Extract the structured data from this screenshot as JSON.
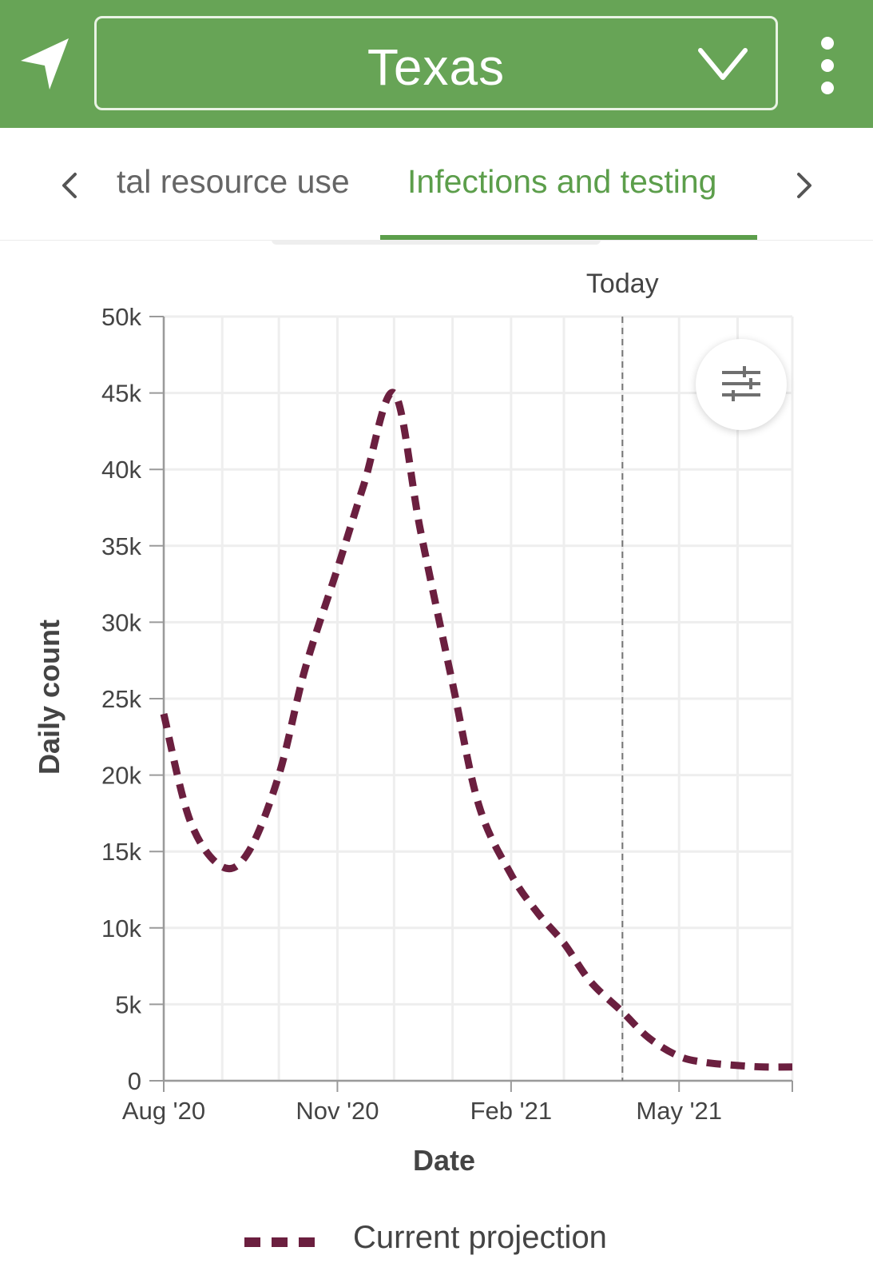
{
  "header": {
    "state": "Texas",
    "location_icon": "location-arrow-icon",
    "dropdown_icon": "chevron-down-icon",
    "menu_icon": "more-vertical-icon",
    "color": "#67a456"
  },
  "tabs": {
    "prev_label": "tal resource use",
    "active_label": "Infections and testing",
    "left_arrow_icon": "chevron-left-icon",
    "right_arrow_icon": "chevron-right-icon",
    "active_color": "#5c9e4b"
  },
  "filter_icon": "sliders-icon",
  "chart_data": {
    "type": "line",
    "xlabel": "Date",
    "ylabel": "Daily count",
    "x_ticks": [
      "Aug '20",
      "Nov '20",
      "Feb '21",
      "May '21"
    ],
    "x_tick_dates": [
      "2020-08-01",
      "2020-11-01",
      "2021-02-01",
      "2021-05-01"
    ],
    "xlim": [
      "2020-08-01",
      "2021-06-30"
    ],
    "y_ticks": [
      "0",
      "5k",
      "10k",
      "15k",
      "20k",
      "25k",
      "30k",
      "35k",
      "40k",
      "45k",
      "50k"
    ],
    "y_tick_values": [
      0,
      5000,
      10000,
      15000,
      20000,
      25000,
      30000,
      35000,
      40000,
      45000,
      50000
    ],
    "ylim": [
      0,
      50000
    ],
    "grid": true,
    "legend_position": "bottom",
    "reference_line": {
      "label": "Today",
      "date": "2021-04-01"
    },
    "series": [
      {
        "name": "Current projection",
        "color": "#6b1f3f",
        "dash": "dashed",
        "x": [
          "2020-08-01",
          "2020-08-15",
          "2020-09-01",
          "2020-09-15",
          "2020-10-01",
          "2020-10-15",
          "2020-11-01",
          "2020-11-15",
          "2020-12-01",
          "2020-12-15",
          "2021-01-01",
          "2021-01-15",
          "2021-02-01",
          "2021-02-15",
          "2021-03-01",
          "2021-03-15",
          "2021-04-01",
          "2021-04-15",
          "2021-05-01",
          "2021-05-15",
          "2021-06-01",
          "2021-06-15",
          "2021-06-30"
        ],
        "values": [
          24000,
          17000,
          14000,
          15000,
          20000,
          27000,
          33500,
          39000,
          45000,
          36000,
          26000,
          18000,
          13500,
          11000,
          9000,
          6500,
          4500,
          2800,
          1600,
          1200,
          1000,
          900,
          900
        ]
      }
    ]
  }
}
